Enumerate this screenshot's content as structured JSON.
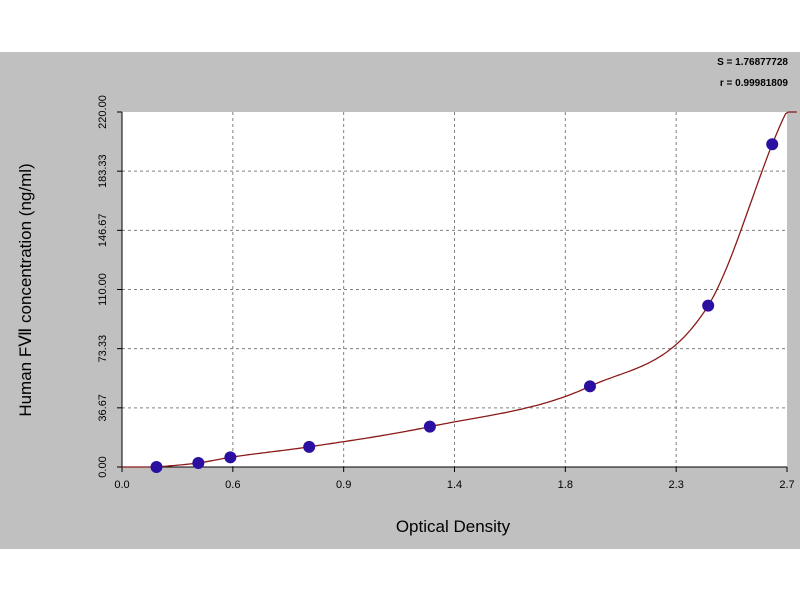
{
  "chart_data": {
    "type": "scatter",
    "xlabel": "Optical Density",
    "ylabel": "Human FⅦ  concentration (ng/ml)",
    "xlim": [
      0.0,
      2.7
    ],
    "ylim": [
      0.0,
      220.0
    ],
    "x_ticks": [
      "0.0",
      "0.6",
      "0.9",
      "1.4",
      "1.8",
      "2.3",
      "2.7"
    ],
    "y_ticks": [
      "0.00",
      "36.67",
      "73.33",
      "110.00",
      "146.67",
      "183.33",
      "220.00"
    ],
    "grid": true,
    "fit_stats": [
      "S = 1.76877728",
      "r = 0.99981809"
    ],
    "points": [
      {
        "x": 0.14,
        "y": 0.0
      },
      {
        "x": 0.31,
        "y": 2.5
      },
      {
        "x": 0.44,
        "y": 6.0
      },
      {
        "x": 0.76,
        "y": 12.5
      },
      {
        "x": 1.25,
        "y": 25.0
      },
      {
        "x": 1.9,
        "y": 50.0
      },
      {
        "x": 2.38,
        "y": 100.0
      },
      {
        "x": 2.64,
        "y": 200.0
      }
    ],
    "colors": {
      "background": "#c0c0c0",
      "plot_area": "#ffffff",
      "grid": "#808080",
      "curve": "#8b1a1a",
      "points": "#2a0fa0"
    }
  }
}
